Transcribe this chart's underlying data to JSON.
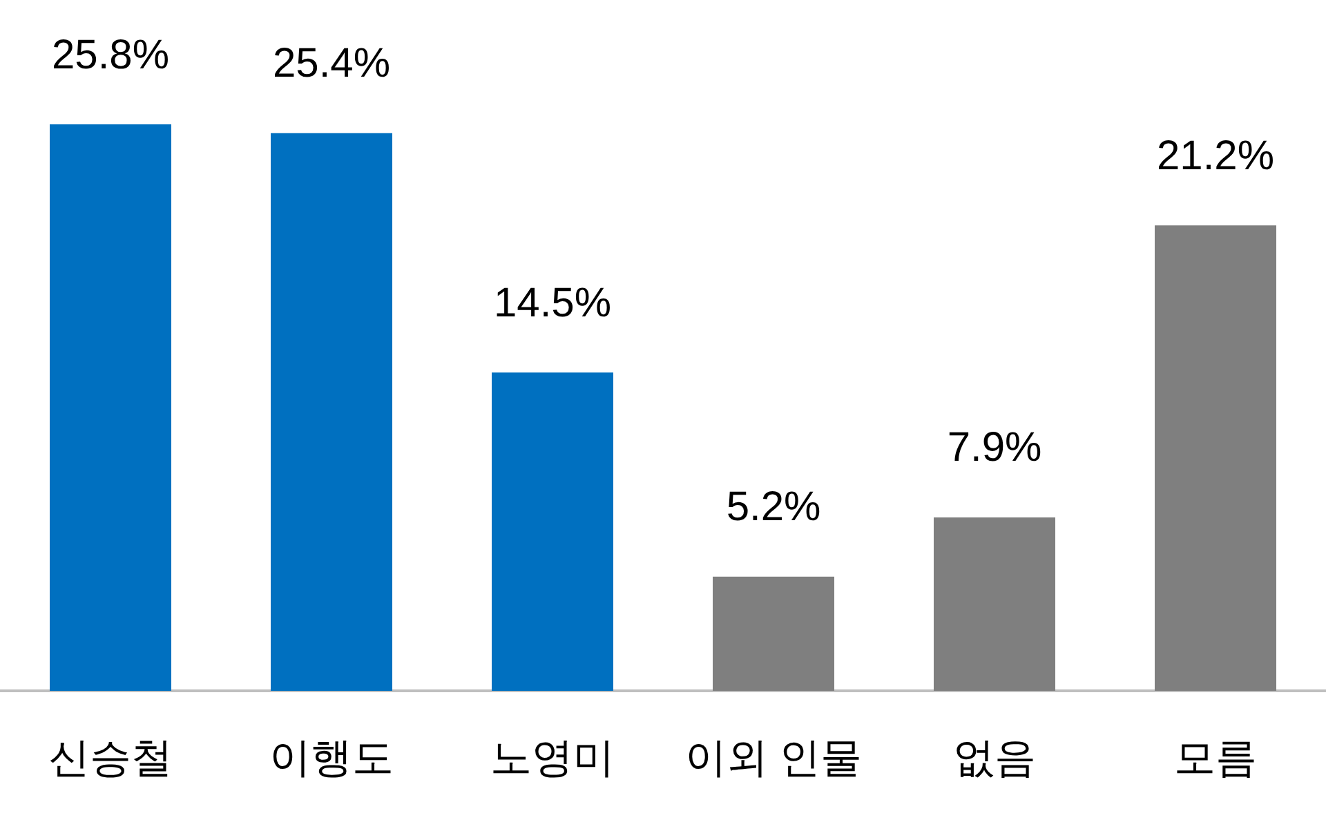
{
  "chart_data": {
    "type": "bar",
    "categories": [
      "신승철",
      "이행도",
      "노영미",
      "이외 인물",
      "없음",
      "모름"
    ],
    "values": [
      25.8,
      25.4,
      14.5,
      5.2,
      7.9,
      21.2
    ],
    "colors": [
      "#0070c0",
      "#0070c0",
      "#0070c0",
      "#7f7f7f",
      "#7f7f7f",
      "#7f7f7f"
    ],
    "value_labels": [
      "25.8%",
      "25.4%",
      "14.5%",
      "5.2%",
      "7.9%",
      "21.2%"
    ]
  }
}
